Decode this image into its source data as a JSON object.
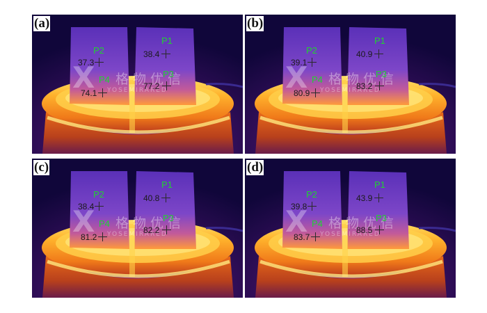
{
  "colors": {
    "background": "#120838",
    "sample": "#7a46c6",
    "hot_plate": "#ffb02a",
    "point_label": "#22d033",
    "value_text": "#1a1a1a"
  },
  "watermark": {
    "glyph": "X",
    "chinese": "格物优信",
    "english": "YOSEMIRARED"
  },
  "panels": [
    {
      "label": "(a)",
      "points": {
        "P1": "38.4",
        "P2": "37.3",
        "P3": "77.2",
        "P4": "74.1"
      }
    },
    {
      "label": "(b)",
      "points": {
        "P1": "40.9",
        "P2": "39.1",
        "P3": "83.2",
        "P4": "80.9"
      }
    },
    {
      "label": "(c)",
      "points": {
        "P1": "40.8",
        "P2": "38.4",
        "P3": "82.2",
        "P4": "81.2"
      }
    },
    {
      "label": "(d)",
      "points": {
        "P1": "43.9",
        "P2": "39.8",
        "P3": "88.5",
        "P4": "83.7"
      }
    }
  ],
  "point_names": {
    "p1": "P1",
    "p2": "P2",
    "p3": "P3",
    "p4": "P4"
  }
}
